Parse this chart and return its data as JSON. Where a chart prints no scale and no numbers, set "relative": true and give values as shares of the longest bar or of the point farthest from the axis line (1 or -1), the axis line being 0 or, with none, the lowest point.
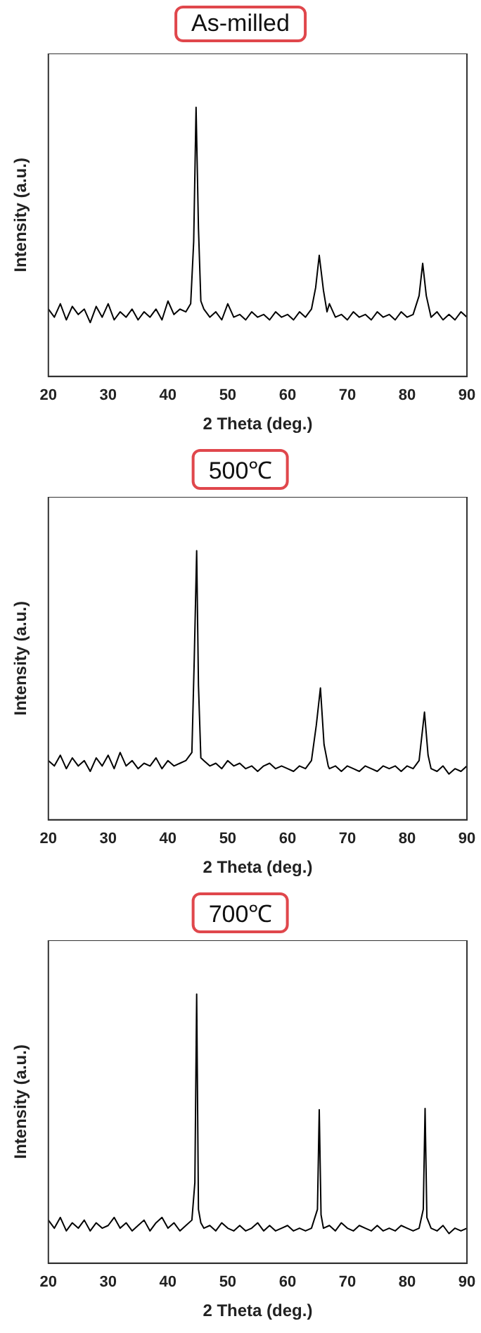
{
  "chart_data": [
    {
      "type": "line",
      "title": "As-milled",
      "xlabel": "2 Theta (deg.)",
      "ylabel": "Intensity (a.u.)",
      "xlim": [
        20,
        90
      ],
      "xticks": [
        20,
        30,
        40,
        50,
        60,
        70,
        80,
        90
      ],
      "relative": true,
      "tick_labels": "x",
      "grid": false,
      "legend": false,
      "marker": "none",
      "line_style": "solid",
      "series": [
        {
          "color": "#000000",
          "x": [
            20,
            21,
            22,
            23,
            24,
            25,
            26,
            27,
            28,
            29,
            30,
            31,
            32,
            33,
            34,
            35,
            36,
            37,
            38,
            39,
            40,
            41,
            42,
            43,
            43.8,
            44.3,
            44.7,
            45.1,
            45.5,
            46,
            47,
            48,
            49,
            50,
            51,
            52,
            53,
            54,
            55,
            56,
            57,
            58,
            59,
            60,
            61,
            62,
            63,
            64,
            64.7,
            65.3,
            66,
            66.6,
            67,
            68,
            69,
            70,
            71,
            72,
            73,
            74,
            75,
            76,
            77,
            78,
            79,
            80,
            81,
            82,
            82.6,
            83.2,
            83.8,
            84,
            85,
            86,
            87,
            88,
            89,
            90
          ],
          "values": [
            0.25,
            0.22,
            0.27,
            0.21,
            0.26,
            0.23,
            0.25,
            0.2,
            0.26,
            0.22,
            0.27,
            0.21,
            0.24,
            0.22,
            0.25,
            0.21,
            0.24,
            0.22,
            0.25,
            0.21,
            0.28,
            0.23,
            0.25,
            0.24,
            0.27,
            0.5,
            1,
            0.55,
            0.28,
            0.25,
            0.22,
            0.24,
            0.21,
            0.27,
            0.22,
            0.23,
            0.21,
            0.24,
            0.22,
            0.23,
            0.21,
            0.24,
            0.22,
            0.23,
            0.21,
            0.24,
            0.22,
            0.25,
            0.33,
            0.45,
            0.32,
            0.24,
            0.27,
            0.22,
            0.23,
            0.21,
            0.24,
            0.22,
            0.23,
            0.21,
            0.24,
            0.22,
            0.23,
            0.21,
            0.24,
            0.22,
            0.23,
            0.3,
            0.42,
            0.3,
            0.24,
            0.22,
            0.24,
            0.21,
            0.23,
            0.21,
            0.24,
            0.22
          ]
        }
      ]
    },
    {
      "type": "line",
      "title": "500℃",
      "xlabel": "2 Theta (deg.)",
      "ylabel": "Intensity (a.u.)",
      "xlim": [
        20,
        90
      ],
      "xticks": [
        20,
        30,
        40,
        50,
        60,
        70,
        80,
        90
      ],
      "relative": true,
      "tick_labels": "x",
      "grid": false,
      "legend": false,
      "marker": "none",
      "line_style": "solid",
      "series": [
        {
          "color": "#000000",
          "x": [
            20,
            21,
            22,
            23,
            24,
            25,
            26,
            27,
            28,
            29,
            30,
            31,
            32,
            33,
            34,
            35,
            36,
            37,
            38,
            39,
            40,
            41,
            42,
            43,
            44,
            44.4,
            44.8,
            45.1,
            45.5,
            46,
            47,
            48,
            49,
            50,
            51,
            52,
            53,
            54,
            55,
            56,
            57,
            58,
            59,
            60,
            61,
            62,
            63,
            64,
            64.8,
            65.5,
            66.1,
            66.8,
            67,
            68,
            69,
            70,
            71,
            72,
            73,
            74,
            75,
            76,
            77,
            78,
            79,
            80,
            81,
            82,
            82.9,
            83.5,
            84,
            85,
            86,
            87,
            88,
            89,
            90
          ],
          "values": [
            0.22,
            0.2,
            0.24,
            0.19,
            0.23,
            0.2,
            0.22,
            0.18,
            0.23,
            0.2,
            0.24,
            0.19,
            0.25,
            0.2,
            0.22,
            0.19,
            0.21,
            0.2,
            0.23,
            0.19,
            0.22,
            0.2,
            0.21,
            0.22,
            0.25,
            0.6,
            1,
            0.5,
            0.23,
            0.22,
            0.2,
            0.21,
            0.19,
            0.22,
            0.2,
            0.21,
            0.19,
            0.2,
            0.18,
            0.2,
            0.21,
            0.19,
            0.2,
            0.19,
            0.18,
            0.2,
            0.19,
            0.22,
            0.35,
            0.49,
            0.28,
            0.2,
            0.19,
            0.2,
            0.18,
            0.2,
            0.19,
            0.18,
            0.2,
            0.19,
            0.18,
            0.2,
            0.19,
            0.2,
            0.18,
            0.2,
            0.19,
            0.22,
            0.4,
            0.24,
            0.19,
            0.18,
            0.2,
            0.17,
            0.19,
            0.18,
            0.2
          ]
        }
      ]
    },
    {
      "type": "line",
      "title": "700℃",
      "xlabel": "2 Theta (deg.)",
      "ylabel": "Intensity (a.u.)",
      "xlim": [
        20,
        90
      ],
      "xticks": [
        20,
        30,
        40,
        50,
        60,
        70,
        80,
        90
      ],
      "relative": true,
      "tick_labels": "x",
      "grid": false,
      "legend": false,
      "marker": "none",
      "line_style": "solid",
      "series": [
        {
          "color": "#000000",
          "x": [
            20,
            21,
            22,
            23,
            24,
            25,
            26,
            27,
            28,
            29,
            30,
            31,
            32,
            33,
            34,
            35,
            36,
            37,
            38,
            39,
            40,
            41,
            42,
            43,
            44,
            44.5,
            44.8,
            45.1,
            45.5,
            46,
            47,
            48,
            49,
            50,
            51,
            52,
            53,
            54,
            55,
            56,
            57,
            58,
            59,
            60,
            61,
            62,
            63,
            64,
            65,
            65.3,
            65.6,
            66,
            67,
            68,
            69,
            70,
            71,
            72,
            73,
            74,
            75,
            76,
            77,
            78,
            79,
            80,
            81,
            82,
            82.7,
            83,
            83.3,
            84,
            85,
            86,
            87,
            88,
            89,
            90
          ],
          "values": [
            0.16,
            0.13,
            0.17,
            0.12,
            0.15,
            0.13,
            0.16,
            0.12,
            0.15,
            0.13,
            0.14,
            0.17,
            0.13,
            0.15,
            0.12,
            0.14,
            0.16,
            0.12,
            0.15,
            0.17,
            0.13,
            0.15,
            0.12,
            0.14,
            0.16,
            0.3,
            1,
            0.2,
            0.15,
            0.13,
            0.14,
            0.12,
            0.15,
            0.13,
            0.12,
            0.14,
            0.12,
            0.13,
            0.15,
            0.12,
            0.14,
            0.12,
            0.13,
            0.14,
            0.12,
            0.13,
            0.12,
            0.13,
            0.2,
            0.57,
            0.18,
            0.13,
            0.14,
            0.12,
            0.15,
            0.13,
            0.12,
            0.14,
            0.13,
            0.12,
            0.14,
            0.12,
            0.13,
            0.12,
            0.14,
            0.13,
            0.12,
            0.13,
            0.2,
            0.575,
            0.17,
            0.13,
            0.12,
            0.14,
            0.11,
            0.13,
            0.12,
            0.13
          ]
        }
      ]
    }
  ]
}
